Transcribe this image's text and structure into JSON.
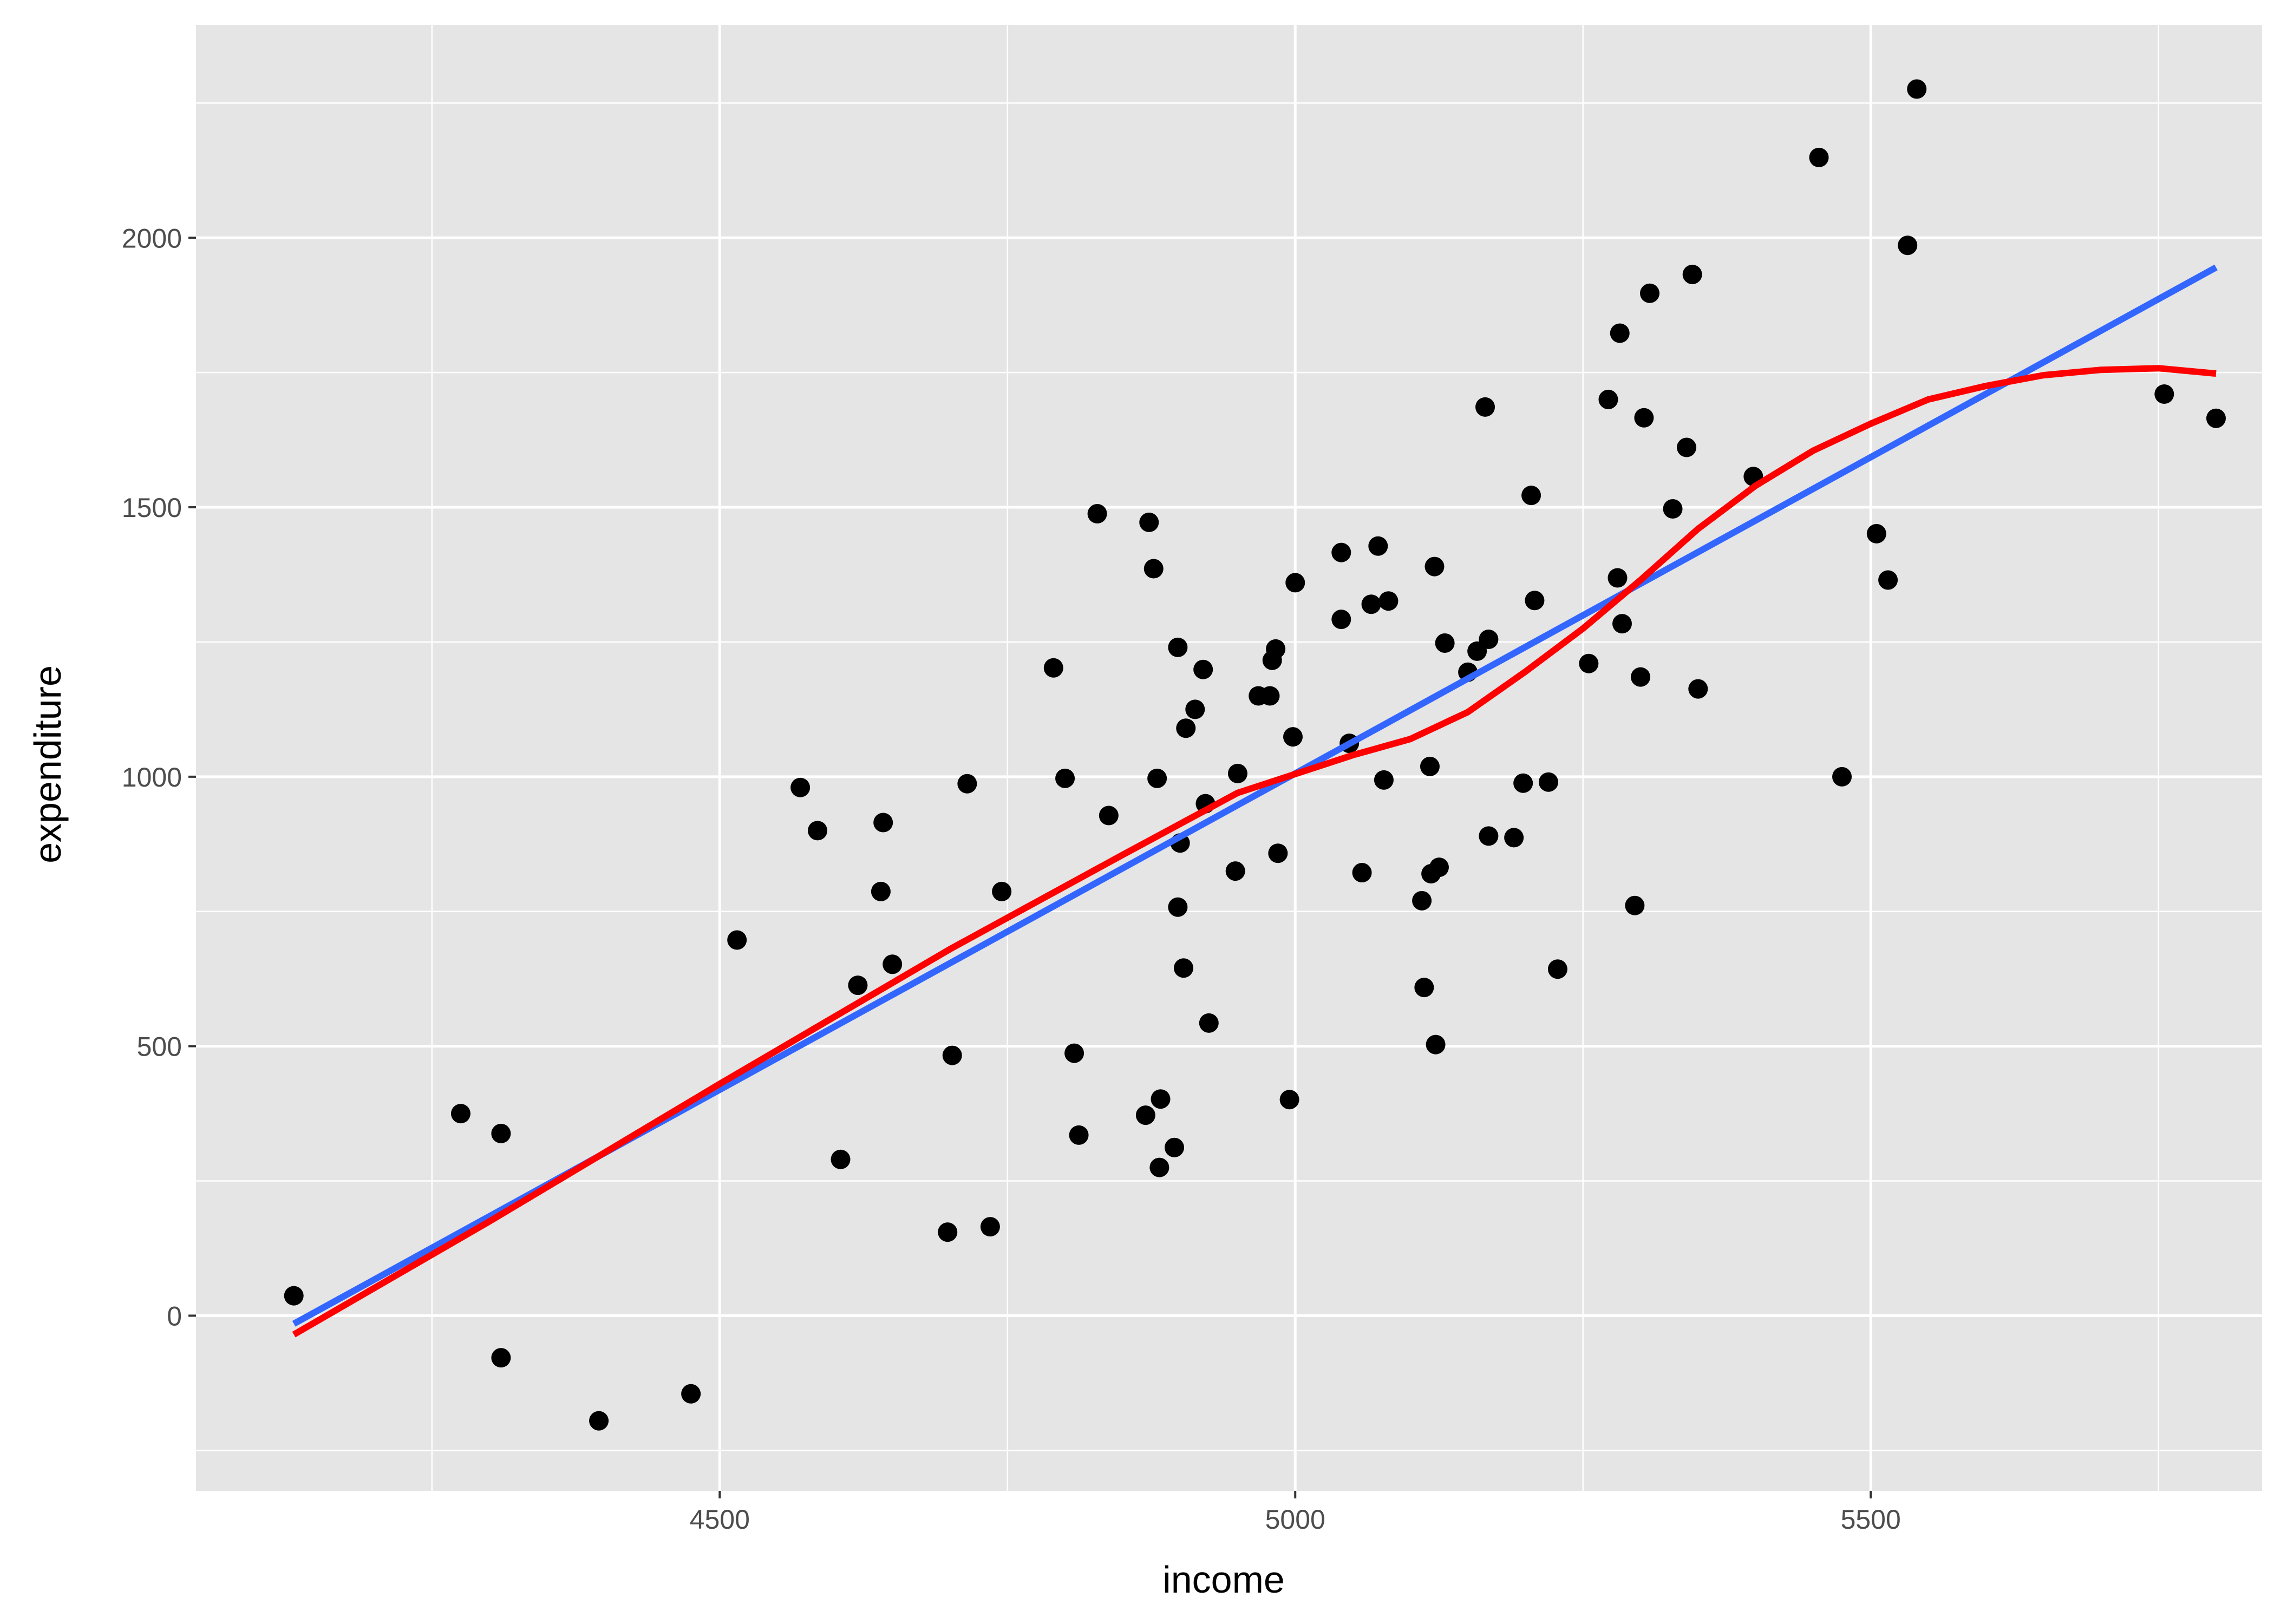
{
  "chart_data": {
    "type": "scatter",
    "xlabel": "income",
    "ylabel": "expenditure",
    "xlim": [
      4045,
      5840
    ],
    "ylim": [
      -325,
      2395
    ],
    "x_ticks": [
      4500,
      5000,
      5500
    ],
    "x_tick_labels": [
      "4500",
      "5000",
      "5500"
    ],
    "x_minor_ticks": [
      4250,
      4750,
      5250,
      5750
    ],
    "y_ticks": [
      0,
      500,
      1000,
      1500,
      2000
    ],
    "y_tick_labels": [
      "0",
      "500",
      "1000",
      "1500",
      "2000"
    ],
    "y_minor_ticks": [
      -250,
      250,
      750,
      1250,
      1750,
      2250
    ],
    "grid": true,
    "legend": "none",
    "points": [
      [
        4130,
        37
      ],
      [
        4275,
        375
      ],
      [
        4310,
        338
      ],
      [
        4310,
        -78
      ],
      [
        4395,
        -195
      ],
      [
        4475,
        -145
      ],
      [
        4515,
        697
      ],
      [
        4570,
        980
      ],
      [
        4585,
        900
      ],
      [
        4605,
        290
      ],
      [
        4620,
        613
      ],
      [
        4640,
        787
      ],
      [
        4642,
        915
      ],
      [
        4650,
        652
      ],
      [
        4698,
        155
      ],
      [
        4702,
        483
      ],
      [
        4715,
        987
      ],
      [
        4735,
        165
      ],
      [
        4745,
        787
      ],
      [
        4790,
        1202
      ],
      [
        4800,
        997
      ],
      [
        4808,
        487
      ],
      [
        4812,
        335
      ],
      [
        4828,
        1488
      ],
      [
        4838,
        928
      ],
      [
        4870,
        372
      ],
      [
        4873,
        1472
      ],
      [
        4877,
        1386
      ],
      [
        4880,
        997
      ],
      [
        4883,
        402
      ],
      [
        4882,
        275
      ],
      [
        4895,
        312
      ],
      [
        4898,
        1240
      ],
      [
        4898,
        758
      ],
      [
        4900,
        877
      ],
      [
        4903,
        645
      ],
      [
        4905,
        1090
      ],
      [
        4913,
        1125
      ],
      [
        4920,
        1199
      ],
      [
        4922,
        950
      ],
      [
        4925,
        543
      ],
      [
        4948,
        825
      ],
      [
        4950,
        1006
      ],
      [
        4968,
        1150
      ],
      [
        4978,
        1150
      ],
      [
        4980,
        1216
      ],
      [
        4983,
        1237
      ],
      [
        4985,
        858
      ],
      [
        4995,
        401
      ],
      [
        4998,
        1074
      ],
      [
        5000,
        1360
      ],
      [
        5040,
        1416
      ],
      [
        5040,
        1292
      ],
      [
        5047,
        1062
      ],
      [
        5058,
        822
      ],
      [
        5066,
        1320
      ],
      [
        5072,
        1428
      ],
      [
        5077,
        994
      ],
      [
        5081,
        1326
      ],
      [
        5110,
        770
      ],
      [
        5112,
        609
      ],
      [
        5117,
        1019
      ],
      [
        5118,
        820
      ],
      [
        5121,
        1390
      ],
      [
        5122,
        503
      ],
      [
        5125,
        832
      ],
      [
        5130,
        1248
      ],
      [
        5150,
        1194
      ],
      [
        5158,
        1233
      ],
      [
        5165,
        1686
      ],
      [
        5168,
        890
      ],
      [
        5168,
        1255
      ],
      [
        5190,
        887
      ],
      [
        5198,
        988
      ],
      [
        5205,
        1522
      ],
      [
        5208,
        1327
      ],
      [
        5220,
        990
      ],
      [
        5228,
        643
      ],
      [
        5255,
        1210
      ],
      [
        5272,
        1700
      ],
      [
        5280,
        1369
      ],
      [
        5282,
        1823
      ],
      [
        5284,
        1284
      ],
      [
        5295,
        761
      ],
      [
        5300,
        1185
      ],
      [
        5303,
        1666
      ],
      [
        5308,
        1897
      ],
      [
        5328,
        1497
      ],
      [
        5340,
        1611
      ],
      [
        5345,
        1932
      ],
      [
        5350,
        1163
      ],
      [
        5398,
        1557
      ],
      [
        5455,
        2149
      ],
      [
        5475,
        1000
      ],
      [
        5505,
        1451
      ],
      [
        5515,
        1365
      ],
      [
        5532,
        1986
      ],
      [
        5540,
        2276
      ],
      [
        5755,
        1710
      ],
      [
        5800,
        1665
      ]
    ],
    "series": [
      {
        "fit": "linear",
        "color": "#3366ff",
        "x": [
          4130,
          5800
        ],
        "y": [
          -15,
          1945
        ]
      },
      {
        "fit": "smooth",
        "color": "#ff0000",
        "x": [
          4130,
          4300,
          4500,
          4700,
          4850,
          4950,
          5050,
          5100,
          5150,
          5200,
          5250,
          5300,
          5350,
          5400,
          5450,
          5500,
          5550,
          5600,
          5650,
          5700,
          5750,
          5800
        ],
        "y": [
          -35,
          175,
          430,
          680,
          855,
          970,
          1040,
          1070,
          1120,
          1195,
          1275,
          1365,
          1460,
          1540,
          1605,
          1655,
          1700,
          1725,
          1745,
          1755,
          1758,
          1748
        ]
      }
    ],
    "colors": {
      "panel_background": "#e5e5e5",
      "grid": "#ffffff",
      "points": "#000000"
    }
  }
}
